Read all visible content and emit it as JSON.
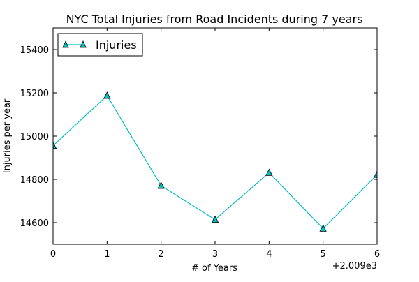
{
  "chart_data": {
    "type": "line",
    "title": "NYC Total Injuries from Road Incidents during 7 years",
    "xlabel": "# of Years",
    "ylabel": "Injuries per year",
    "x_offset_label": "+2.009e3",
    "xlim": [
      0,
      6
    ],
    "ylim": [
      14500,
      15500
    ],
    "x_ticks": [
      0,
      1,
      2,
      3,
      4,
      5,
      6
    ],
    "y_ticks": [
      14600,
      14800,
      15000,
      15200,
      15400
    ],
    "grid": false,
    "legend_position": "top-left",
    "series": [
      {
        "name": "Injuries",
        "color": "#00bfbf",
        "marker": "triangle-up",
        "x": [
          0,
          1,
          2,
          3,
          4,
          5,
          6
        ],
        "values": [
          14956,
          15187,
          14771,
          14614,
          14831,
          14573,
          14822
        ]
      }
    ]
  }
}
